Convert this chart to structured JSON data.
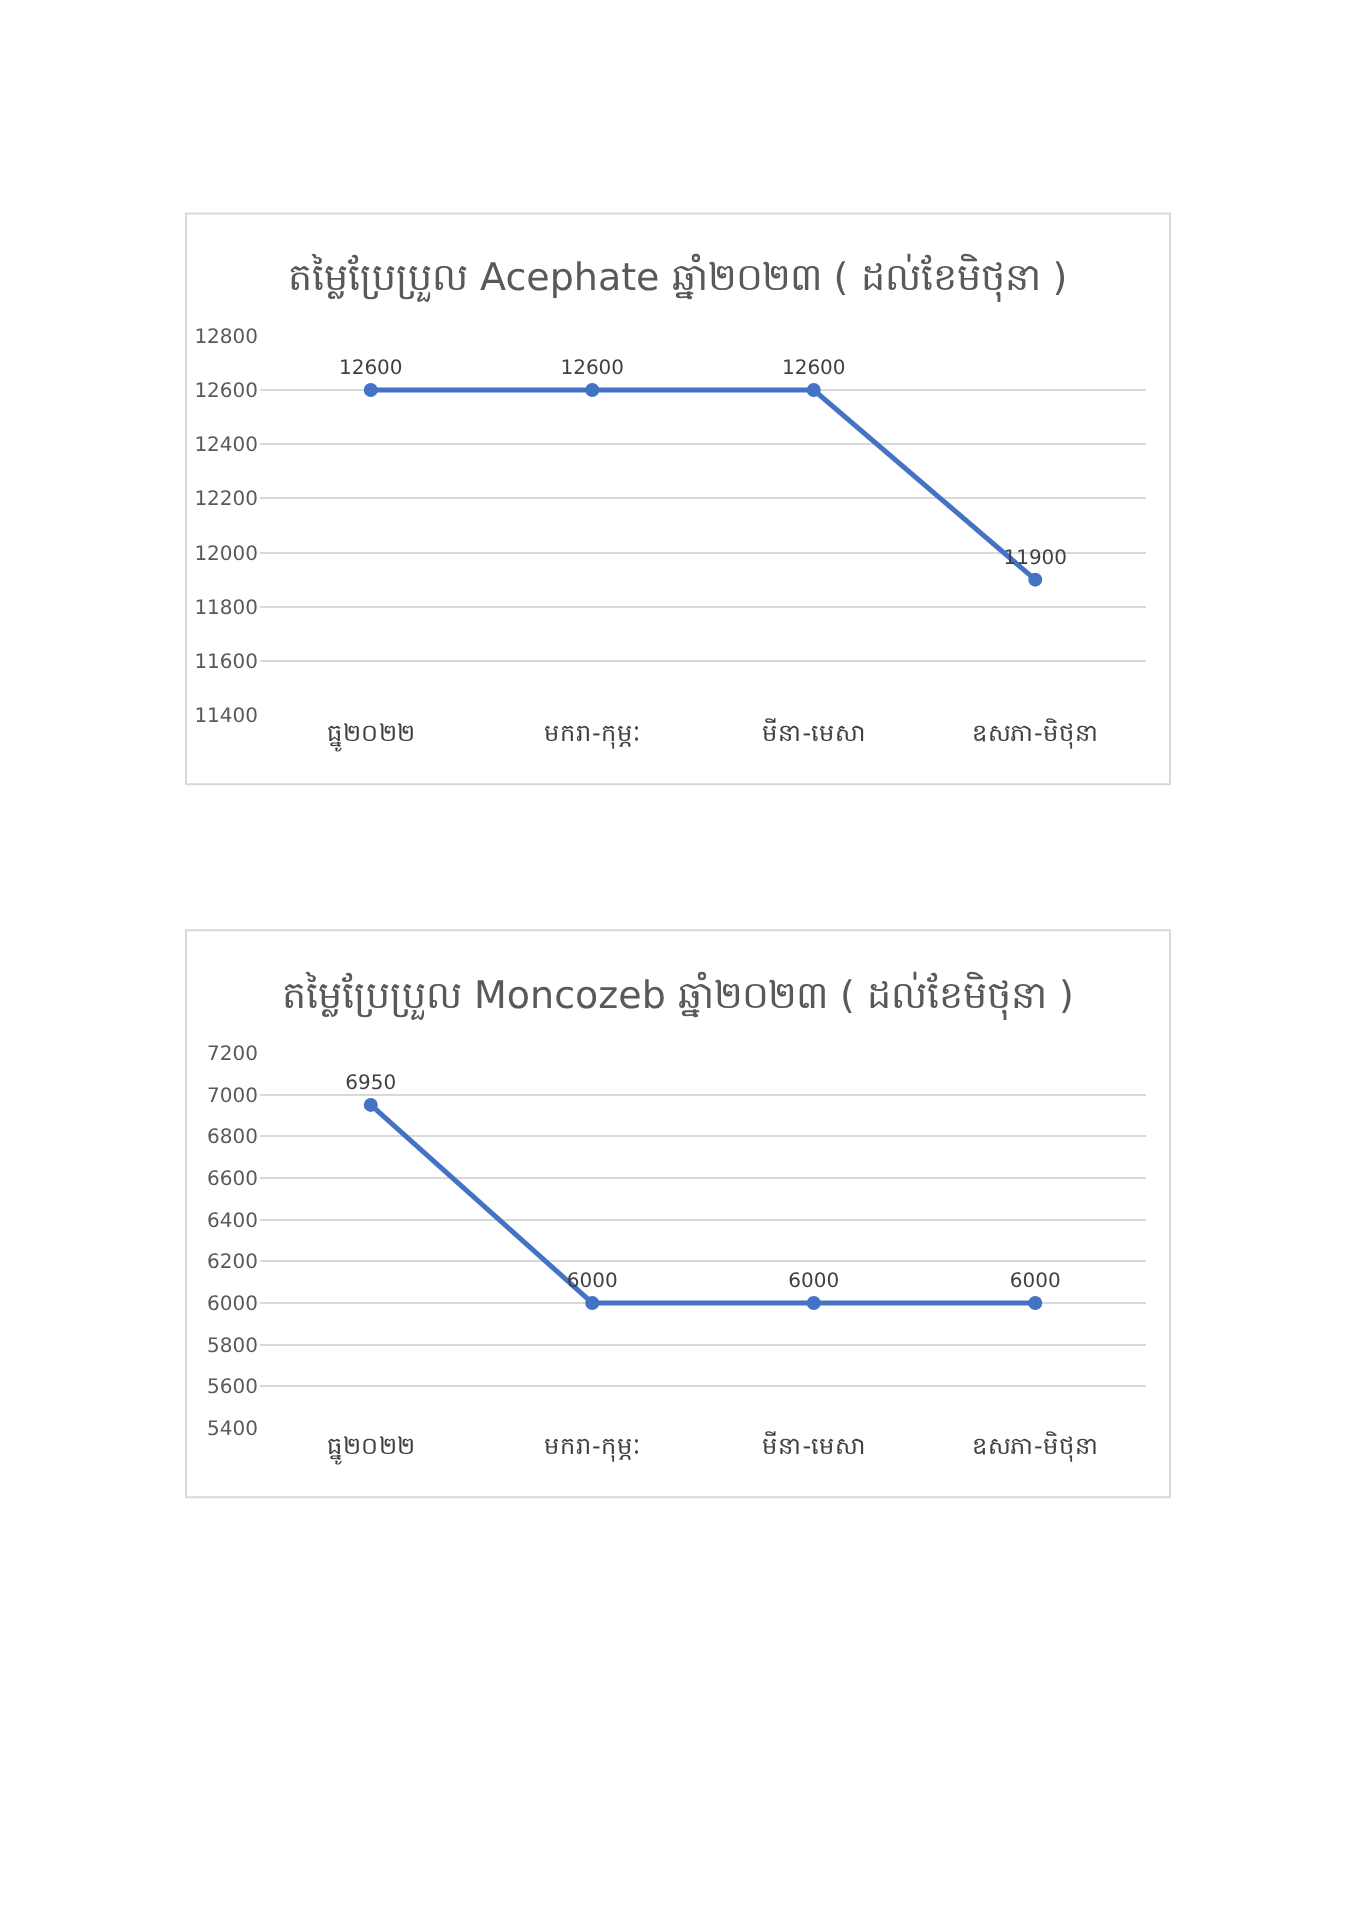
{
  "chart_data": [
    {
      "type": "line",
      "title": "តម្លៃប្រែប្រួល Acephate ឆ្នាំ២០២៣ ( ដល់ខែមិថុនា )",
      "categories": [
        "ធ្នូ២០២២",
        "មករា-កុម្ភៈ",
        "មីនា-មេសា",
        "ឧសភា-មិថុនា"
      ],
      "series": [
        {
          "color": "#4472c4",
          "values": [
            12600,
            12600,
            12600,
            11900
          ]
        }
      ],
      "ylim": [
        11400,
        12800
      ],
      "yticks": [
        11400,
        11600,
        11800,
        12000,
        12200,
        12400,
        12600,
        12800
      ],
      "grid": "y",
      "marker": "circle",
      "line_style": "solid",
      "data_labels": true
    },
    {
      "type": "line",
      "title": "តម្លៃប្រែប្រួល Moncozeb ឆ្នាំ២០២៣ ( ដល់ខែមិថុនា )",
      "categories": [
        "ធ្នូ២០២២",
        "មករា-កុម្ភៈ",
        "មីនា-មេសា",
        "ឧសភា-មិថុនា"
      ],
      "series": [
        {
          "color": "#4472c4",
          "values": [
            6950,
            6000,
            6000,
            6000
          ]
        }
      ],
      "ylim": [
        5400,
        7200
      ],
      "yticks": [
        5400,
        5600,
        5800,
        6000,
        6200,
        6400,
        6600,
        6800,
        7000,
        7200
      ],
      "grid": "y",
      "marker": "circle",
      "line_style": "solid",
      "data_labels": true
    }
  ]
}
